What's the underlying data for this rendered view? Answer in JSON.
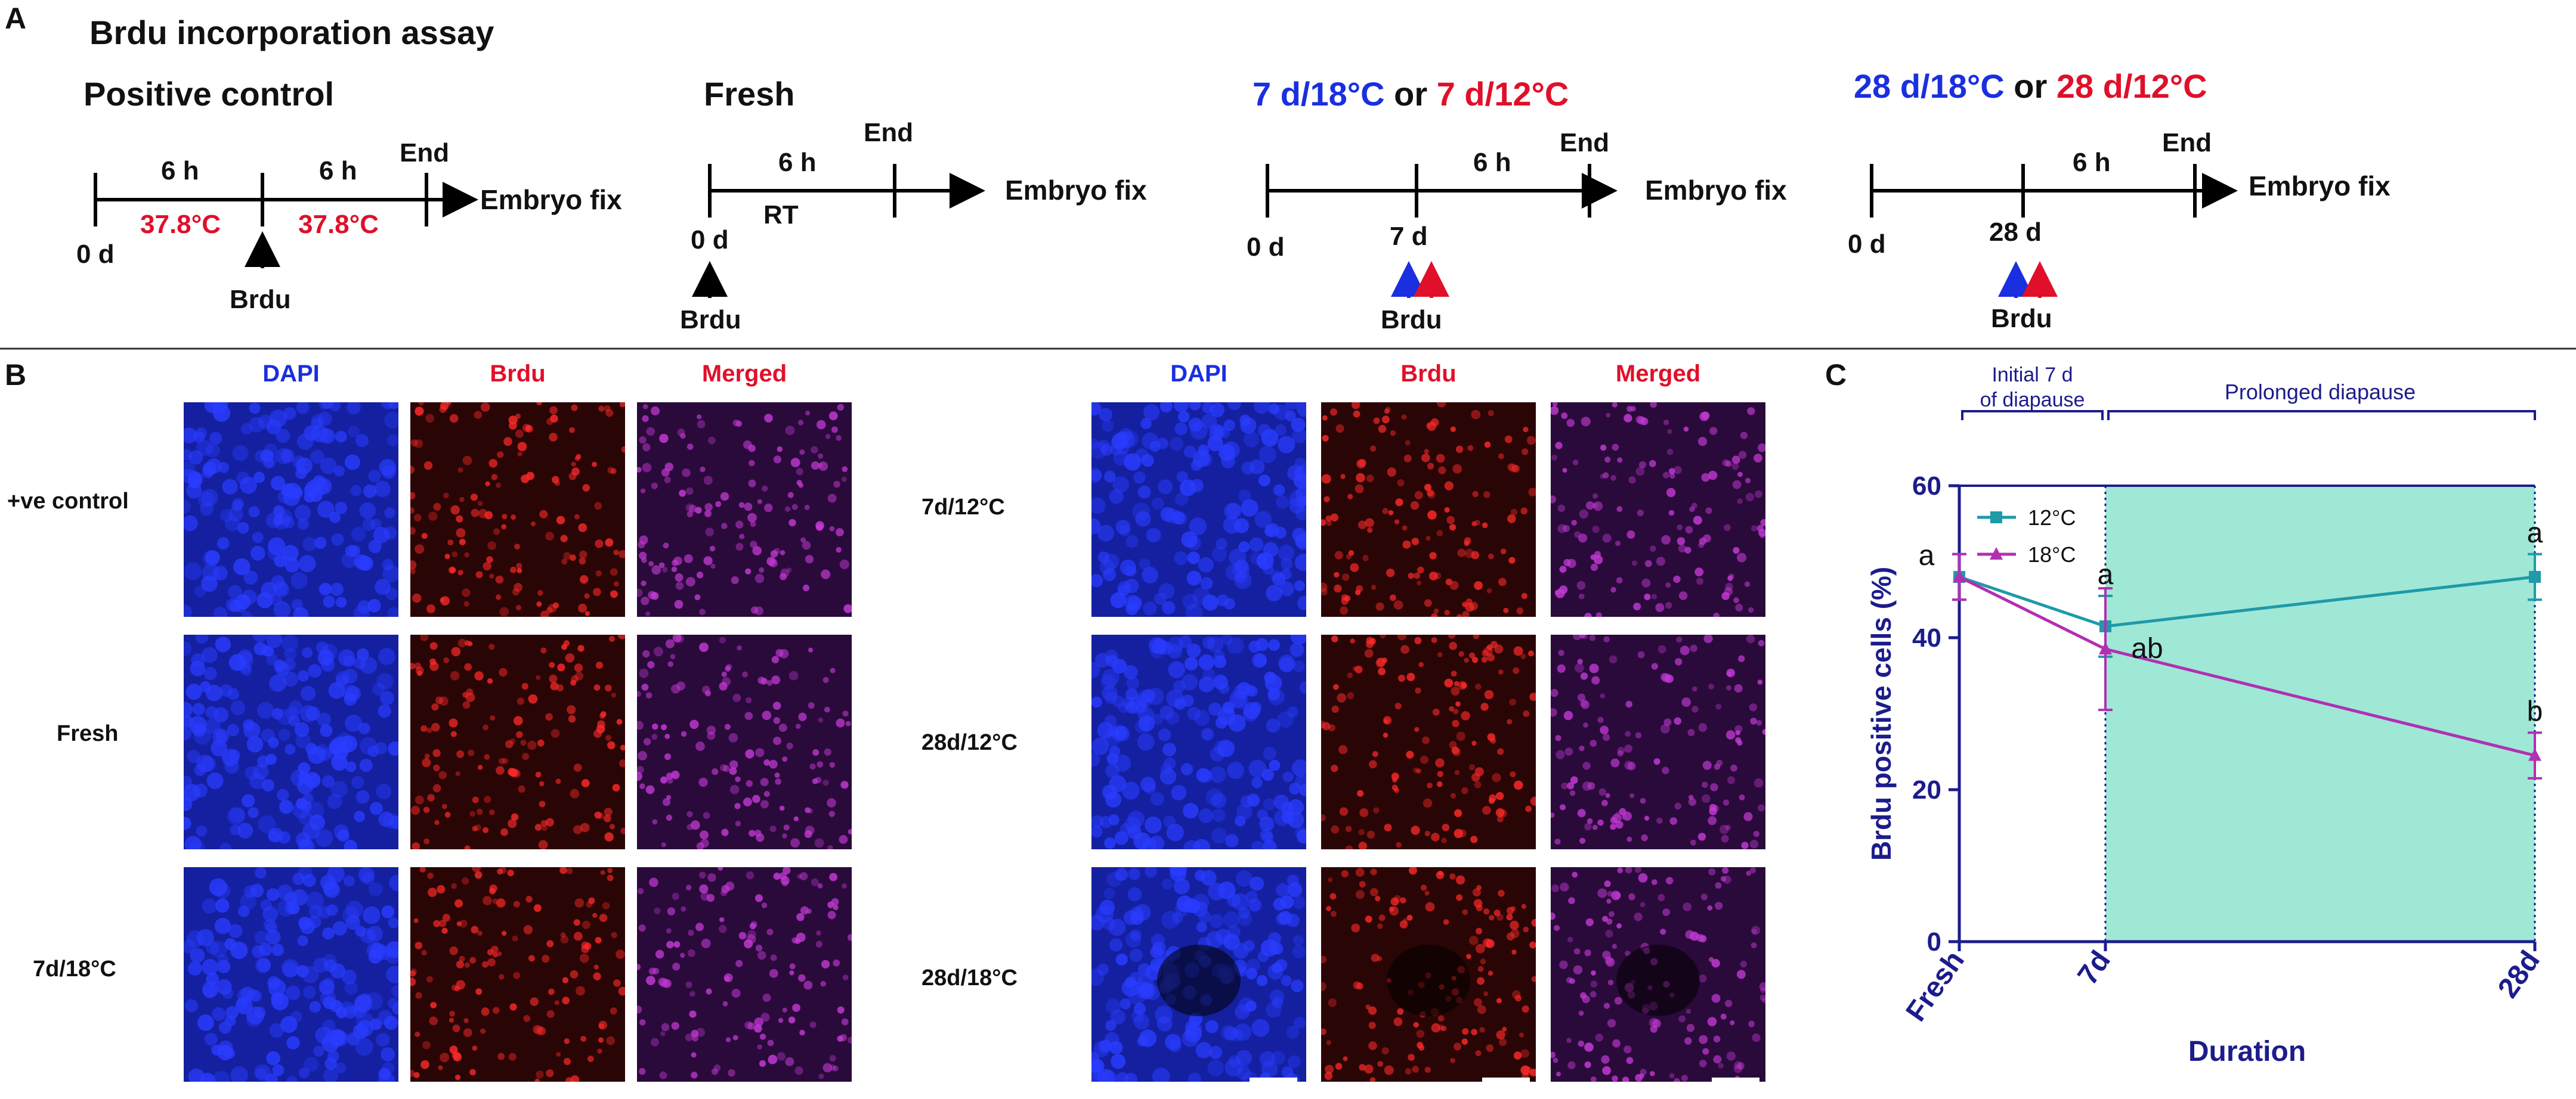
{
  "panel_a": {
    "letter": "A",
    "title": "Brdu incorporation assay",
    "groups": [
      {
        "title": "Positive control",
        "interval1": "6 h",
        "interval2": "6 h",
        "temp1": "37.8°C",
        "temp2": "37.8°C",
        "start": "0 d",
        "end": "End",
        "after": "Embryo fix",
        "marker": "Brdu"
      },
      {
        "title": "Fresh",
        "interval1": "6 h",
        "sub": "RT",
        "start": "0 d",
        "end": "End",
        "after": "Embryo fix",
        "marker": "Brdu"
      },
      {
        "title_blue": "7 d/18°C",
        "title_mid": " or ",
        "title_red": "7 d/12°C",
        "interval1": "6 h",
        "start": "0 d",
        "mid": "7 d",
        "end": "End",
        "after": "Embryo fix",
        "marker": "Brdu"
      },
      {
        "title_blue": "28 d/18°C",
        "title_mid": " or ",
        "title_red": "28 d/12°C",
        "interval1": "6 h",
        "start": "0 d",
        "mid": "28 d",
        "end": "End",
        "after": "Embryo fix",
        "marker": "Brdu"
      }
    ]
  },
  "panel_b": {
    "letter": "B",
    "left_headers": [
      "DAPI",
      "Brdu",
      "Merged"
    ],
    "right_headers": [
      "DAPI",
      "Brdu",
      "Merged"
    ],
    "left_rows": [
      "+ve control",
      "Fresh",
      "7d/18°C"
    ],
    "right_rows": [
      "7d/12°C",
      "28d/12°C",
      "28d/18°C"
    ],
    "colors": {
      "dapi": "#1a2fe0",
      "brdu": "#d01010",
      "merged": "#7a2a9a",
      "header_blue": "#1a2fe0",
      "header_red": "#e0102a"
    }
  },
  "panel_c": {
    "letter": "C",
    "region_left": "Initial 7 d of diapause",
    "region_left_line1": "Initial 7 d",
    "region_left_line2": "of diapause",
    "region_right": "Prolonged diapause",
    "colors": {
      "axis": "#1c1c8c",
      "shade": "#9fe8d6",
      "s12": "#1e9aa8",
      "s18": "#b22fb2"
    }
  },
  "chart_data": {
    "type": "line",
    "categories": [
      "Fresh",
      "7d",
      "28d"
    ],
    "xlabel": "Duration",
    "ylabel": "Brdu positive cells (%)",
    "ylim": [
      0,
      60
    ],
    "yticks": [
      0,
      20,
      40,
      60
    ],
    "grid": false,
    "legend": "top-left",
    "series": [
      {
        "name": "12°C",
        "values": [
          48,
          41.5,
          48
        ],
        "errors": [
          3,
          4,
          3
        ],
        "labels": [
          "",
          "a",
          "a"
        ]
      },
      {
        "name": "18°C",
        "values": [
          48,
          38.5,
          24.5
        ],
        "errors": [
          3,
          8,
          3
        ],
        "labels": [
          "a",
          "ab",
          "b"
        ]
      }
    ]
  }
}
